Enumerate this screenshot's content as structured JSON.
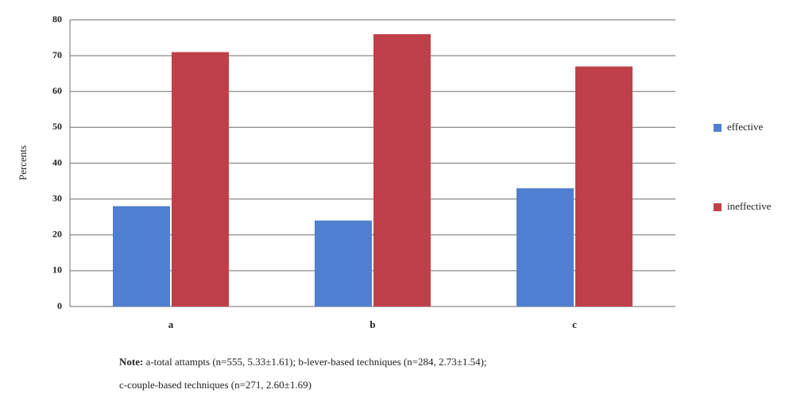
{
  "chart_data": {
    "type": "bar",
    "y_label": "Percents",
    "categories": [
      "a",
      "b",
      "c"
    ],
    "series": [
      {
        "name": "effective",
        "color": "#4f7fd0",
        "values": [
          28,
          24,
          33
        ]
      },
      {
        "name": "ineffective",
        "color": "#c0404a",
        "values": [
          71,
          76,
          67
        ]
      }
    ],
    "ylim": [
      0,
      80
    ],
    "yticks": [
      0,
      10,
      20,
      30,
      40,
      50,
      60,
      70,
      80
    ],
    "grid": true,
    "legend": "right",
    "note_label": "Note:",
    "notes": [
      "a-total attampts (n=555, 5.33±1.61); b-lever-based techniques (n=284, 2.73±1.54);",
      "c-couple-based techniques (n=271, 2.60±1.69)"
    ]
  }
}
